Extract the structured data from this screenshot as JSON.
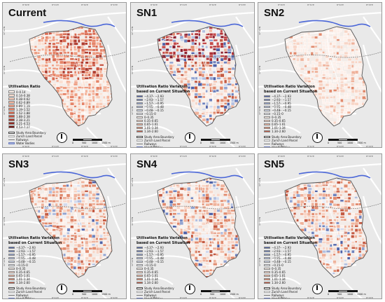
{
  "figure": {
    "panels": [
      {
        "title": "Current",
        "variant": "current"
      },
      {
        "title": "SN1",
        "variant": "sn1"
      },
      {
        "title": "SN2",
        "variant": "sn2"
      },
      {
        "title": "SN3",
        "variant": "sn3"
      },
      {
        "title": "SN4",
        "variant": "sn4"
      },
      {
        "title": "SN5",
        "variant": "sn5"
      }
    ]
  },
  "legend_current": {
    "title": "Utilisation Ratio",
    "classes": [
      {
        "label": "0–0.14",
        "color": "#fdf1ea"
      },
      {
        "label": "0.14–0.38",
        "color": "#fbe0d2"
      },
      {
        "label": "0.38–0.62",
        "color": "#f8ccb8"
      },
      {
        "label": "0.62–0.89",
        "color": "#f4b59d"
      },
      {
        "label": "0.89–1.19",
        "color": "#ee9d82"
      },
      {
        "label": "1.19–1.52",
        "color": "#e58468"
      },
      {
        "label": "1.52–1.88",
        "color": "#d96b52"
      },
      {
        "label": "1.88–2.38",
        "color": "#c8533f"
      },
      {
        "label": "2.38–3.21",
        "color": "#b03d30"
      },
      {
        "label": "3.21–4.53",
        "color": "#932a23"
      },
      {
        "label": "4.53–7.17",
        "color": "#731b18"
      }
    ]
  },
  "legend_variation": {
    "title_line1": "Utilisation Ratio Variation",
    "title_line2": "based on Current Situation",
    "classes": [
      {
        "label": "−4.37– −2.93",
        "color": "#4f62a8"
      },
      {
        "label": "−2.93– −1.57",
        "color": "#6e82bd"
      },
      {
        "label": "−1.57– −0.95",
        "color": "#92a3d0"
      },
      {
        "label": "−0.95– −0.48",
        "color": "#b3c0e0"
      },
      {
        "label": "−0.48– −0.15",
        "color": "#d2daee"
      },
      {
        "label": "−0.15–0",
        "color": "#eceff8"
      },
      {
        "label": "0–0.35",
        "color": "#fdf0ea"
      },
      {
        "label": "0.35–0.65",
        "color": "#f8d5c6"
      },
      {
        "label": "0.65–1.01",
        "color": "#efb29b"
      },
      {
        "label": "1.01–1.34",
        "color": "#e18a6d"
      },
      {
        "label": "1.34–2.60",
        "color": "#c45a42"
      }
    ]
  },
  "legend_common": {
    "boundary": "Study Area Boundary",
    "parcel": "Zurich Land Parcel",
    "railway": "Railways",
    "water": "Water Bodies"
  },
  "axes": {
    "x_ticks": [
      "8°30'E",
      "8°31'E",
      "8°32'E",
      "8°33'E"
    ],
    "y_ticks": [
      "47°24'N",
      "47°23'N",
      "47°22'N"
    ]
  },
  "scalebar": {
    "labels": [
      "0",
      "500",
      "1000",
      "1500 m"
    ]
  },
  "colors": {
    "panel_bg": "#e9e9e9",
    "river": "#4a66d8",
    "road": "#ffffff",
    "boundary": "#555555"
  }
}
